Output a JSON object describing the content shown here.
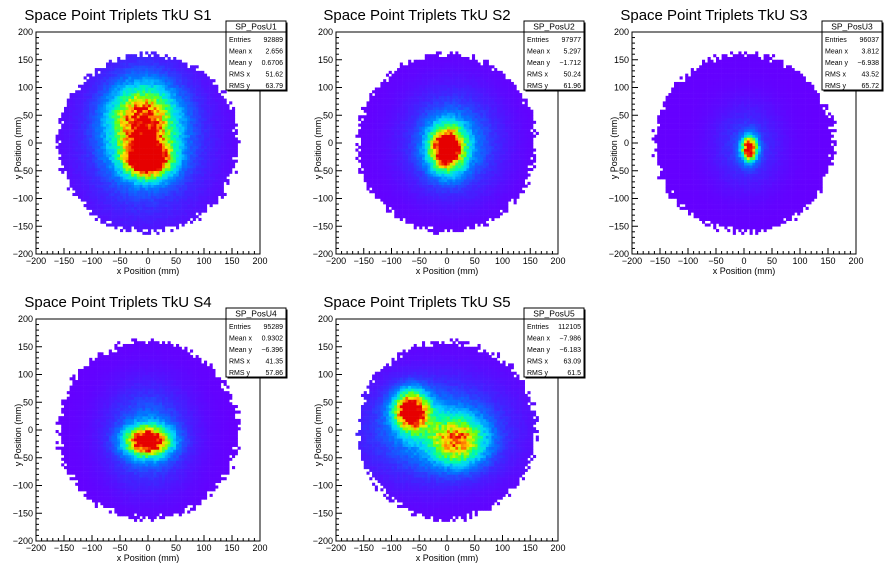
{
  "chart_data": [
    {
      "type": "heatmap",
      "title": "Space Point Triplets TkU S1",
      "xlabel": "x Position (mm)",
      "ylabel": "y Position (mm)",
      "xlim": [
        -200,
        200
      ],
      "ylim": [
        -200,
        200
      ],
      "xticks": [
        "−200",
        "−150",
        "−100",
        "−50",
        "0",
        "50",
        "100",
        "150",
        "200"
      ],
      "yticks": [
        "200",
        "150",
        "100",
        "50",
        "0",
        "−50",
        "−100",
        "−150",
        "−200"
      ],
      "stats": {
        "name": "SP_PosU1",
        "rows": [
          {
            "label": "Entries",
            "value": "92889"
          },
          {
            "label": "Mean x",
            "value": "2.656"
          },
          {
            "label": "Mean y",
            "value": "0.6706"
          },
          {
            "label": "RMS x",
            "value": "51.62"
          },
          {
            "label": "RMS y",
            "value": "63.79"
          }
        ]
      },
      "distribution": {
        "disk_radius_mm": 160,
        "hotspots": [
          {
            "x": 0,
            "y": -30,
            "sx": 28,
            "sy": 22,
            "w": 1.0
          },
          {
            "x": -10,
            "y": 40,
            "sx": 40,
            "sy": 45,
            "w": 0.75
          },
          {
            "x": -5,
            "y": 5,
            "sx": 70,
            "sy": 85,
            "w": 0.35
          }
        ]
      }
    },
    {
      "type": "heatmap",
      "title": "Space Point Triplets TkU S2",
      "xlabel": "x Position (mm)",
      "ylabel": "y Position (mm)",
      "xlim": [
        -200,
        200
      ],
      "ylim": [
        -200,
        200
      ],
      "xticks": [
        "−200",
        "−150",
        "−100",
        "−50",
        "0",
        "50",
        "100",
        "150",
        "200"
      ],
      "yticks": [
        "200",
        "150",
        "100",
        "50",
        "0",
        "−50",
        "−100",
        "−150",
        "−200"
      ],
      "stats": {
        "name": "SP_PosU2",
        "rows": [
          {
            "label": "Entries",
            "value": "97977"
          },
          {
            "label": "Mean x",
            "value": "5.297"
          },
          {
            "label": "Mean y",
            "value": "−1.712"
          },
          {
            "label": "RMS x",
            "value": "50.24"
          },
          {
            "label": "RMS y",
            "value": "61.96"
          }
        ]
      },
      "distribution": {
        "disk_radius_mm": 160,
        "hotspots": [
          {
            "x": 0,
            "y": -10,
            "sx": 22,
            "sy": 28,
            "w": 1.0
          },
          {
            "x": 10,
            "y": 0,
            "sx": 55,
            "sy": 60,
            "w": 0.35
          }
        ]
      }
    },
    {
      "type": "heatmap",
      "title": "Space Point Triplets TkU S3",
      "xlabel": "x Position (mm)",
      "ylabel": "y Position (mm)",
      "xlim": [
        -200,
        200
      ],
      "ylim": [
        -200,
        200
      ],
      "xticks": [
        "−200",
        "−150",
        "−100",
        "−50",
        "0",
        "50",
        "100",
        "150",
        "200"
      ],
      "yticks": [
        "200",
        "150",
        "100",
        "50",
        "0",
        "−50",
        "−100",
        "−150",
        "−200"
      ],
      "stats": {
        "name": "SP_PosU3",
        "rows": [
          {
            "label": "Entries",
            "value": "96037"
          },
          {
            "label": "Mean x",
            "value": "3.812"
          },
          {
            "label": "Mean y",
            "value": "−6.938"
          },
          {
            "label": "RMS x",
            "value": "43.52"
          },
          {
            "label": "RMS y",
            "value": "65.72"
          }
        ]
      },
      "distribution": {
        "disk_radius_mm": 160,
        "hotspots": [
          {
            "x": 10,
            "y": -10,
            "sx": 10,
            "sy": 16,
            "w": 1.0
          },
          {
            "x": 5,
            "y": -5,
            "sx": 40,
            "sy": 50,
            "w": 0.18
          }
        ]
      }
    },
    {
      "type": "heatmap",
      "title": "Space Point Triplets TkU S4",
      "xlabel": "x Position (mm)",
      "ylabel": "y Position (mm)",
      "xlim": [
        -200,
        200
      ],
      "ylim": [
        -200,
        200
      ],
      "xticks": [
        "−200",
        "−150",
        "−100",
        "−50",
        "0",
        "50",
        "100",
        "150",
        "200"
      ],
      "yticks": [
        "200",
        "150",
        "100",
        "50",
        "0",
        "−50",
        "−100",
        "−150",
        "−200"
      ],
      "stats": {
        "name": "SP_PosU4",
        "rows": [
          {
            "label": "Entries",
            "value": "95289"
          },
          {
            "label": "Mean x",
            "value": "0.9302"
          },
          {
            "label": "Mean y",
            "value": "−6.396"
          },
          {
            "label": "RMS x",
            "value": "41.35"
          },
          {
            "label": "RMS y",
            "value": "57.86"
          }
        ]
      },
      "distribution": {
        "disk_radius_mm": 160,
        "hotspots": [
          {
            "x": 0,
            "y": -20,
            "sx": 28,
            "sy": 18,
            "w": 1.0
          },
          {
            "x": 0,
            "y": -10,
            "sx": 50,
            "sy": 60,
            "w": 0.3
          }
        ]
      }
    },
    {
      "type": "heatmap",
      "title": "Space Point Triplets TkU S5",
      "xlabel": "x Position (mm)",
      "ylabel": "y Position (mm)",
      "xlim": [
        -200,
        200
      ],
      "ylim": [
        -200,
        200
      ],
      "xticks": [
        "−200",
        "−150",
        "−100",
        "−50",
        "0",
        "50",
        "100",
        "150",
        "200"
      ],
      "yticks": [
        "200",
        "150",
        "100",
        "50",
        "0",
        "−50",
        "−100",
        "−150",
        "−200"
      ],
      "stats": {
        "name": "SP_PosU5",
        "rows": [
          {
            "label": "Entries",
            "value": "112105"
          },
          {
            "label": "Mean x",
            "value": "−7.986"
          },
          {
            "label": "Mean y",
            "value": "−6.183"
          },
          {
            "label": "RMS x",
            "value": "63.09"
          },
          {
            "label": "RMS y",
            "value": "61.5"
          }
        ]
      },
      "distribution": {
        "disk_radius_mm": 160,
        "hotspots": [
          {
            "x": -65,
            "y": 35,
            "sx": 22,
            "sy": 25,
            "w": 1.0
          },
          {
            "x": 20,
            "y": -20,
            "sx": 35,
            "sy": 30,
            "w": 0.65
          },
          {
            "x": -20,
            "y": 0,
            "sx": 85,
            "sy": 60,
            "w": 0.35
          }
        ]
      }
    }
  ]
}
